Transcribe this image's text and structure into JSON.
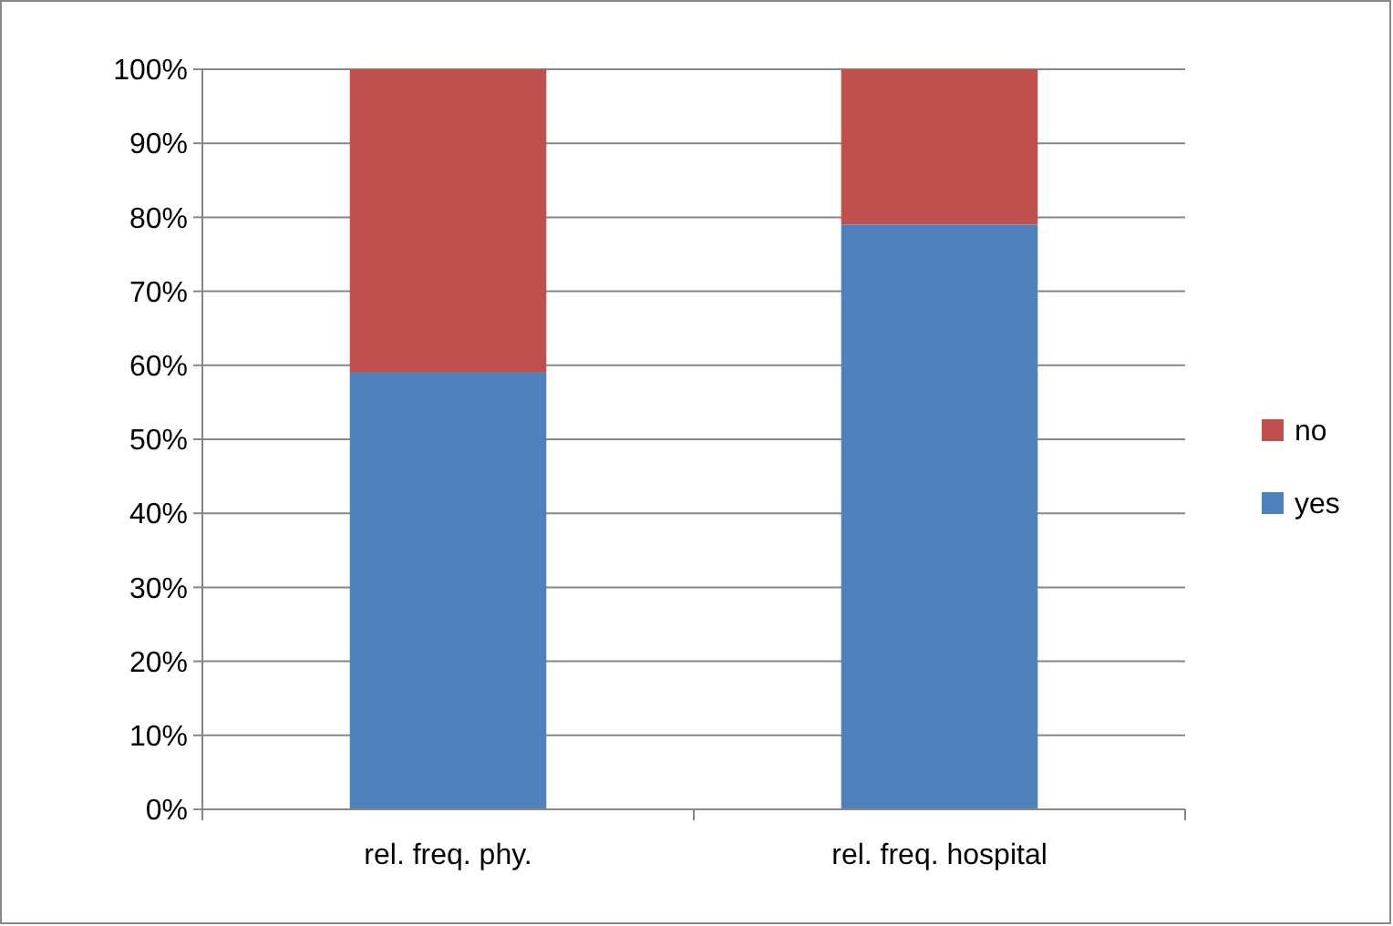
{
  "chart_data": {
    "type": "bar",
    "stacked": true,
    "categories": [
      "rel. freq. phy.",
      "rel. freq. hospital"
    ],
    "series": [
      {
        "name": "yes",
        "color": "#4f81bd",
        "values": [
          59,
          79
        ]
      },
      {
        "name": "no",
        "color": "#c0504d",
        "values": [
          41,
          21
        ]
      }
    ],
    "ylim": [
      0,
      100
    ],
    "yticks": [
      {
        "value": 0,
        "label": "0%"
      },
      {
        "value": 10,
        "label": "10%"
      },
      {
        "value": 20,
        "label": "20%"
      },
      {
        "value": 30,
        "label": "30%"
      },
      {
        "value": 40,
        "label": "40%"
      },
      {
        "value": 50,
        "label": "50%"
      },
      {
        "value": 60,
        "label": "60%"
      },
      {
        "value": 70,
        "label": "70%"
      },
      {
        "value": 80,
        "label": "80%"
      },
      {
        "value": 90,
        "label": "90%"
      },
      {
        "value": 100,
        "label": "100%"
      }
    ],
    "grid": "y",
    "legend": "right"
  }
}
